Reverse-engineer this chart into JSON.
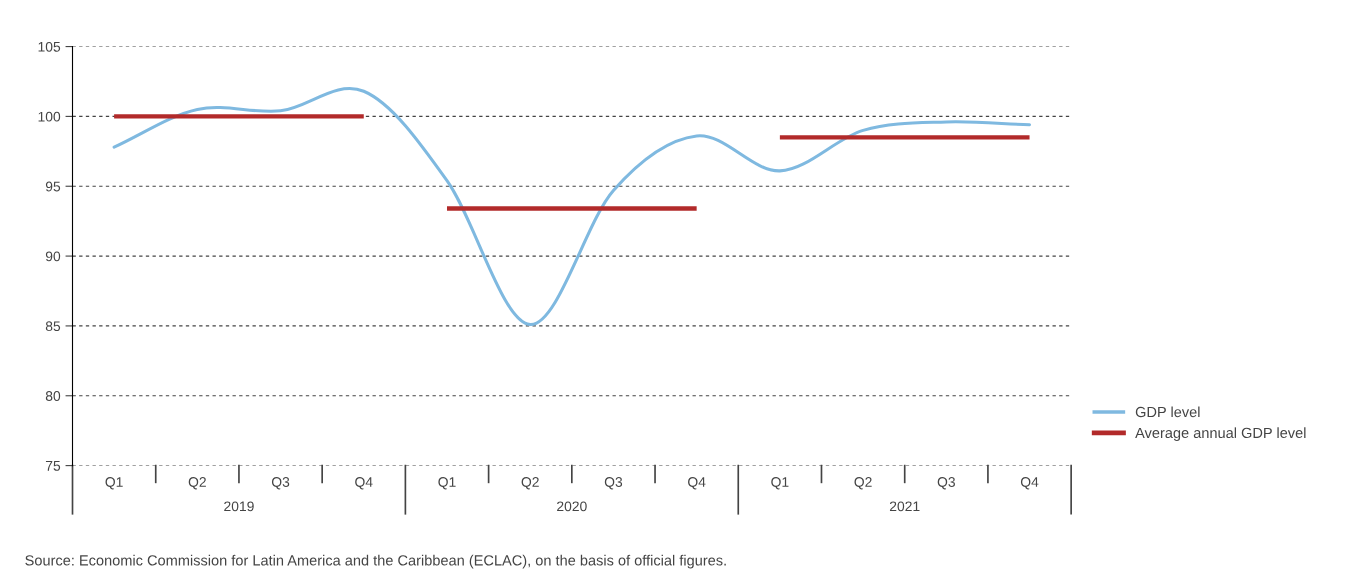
{
  "chart_data": {
    "type": "line",
    "categories": [
      "Q1",
      "Q2",
      "Q3",
      "Q4",
      "Q1",
      "Q2",
      "Q3",
      "Q4",
      "Q1",
      "Q2",
      "Q3",
      "Q4"
    ],
    "series": [
      {
        "name": "GDP level",
        "color": "#7fb9e0",
        "values": [
          97.8,
          100.5,
          100.4,
          101.8,
          95.4,
          85.1,
          94.7,
          98.6,
          96.1,
          99.0,
          99.6,
          99.4
        ]
      },
      {
        "name": "Average annual GDP level",
        "color": "#b22a2a",
        "type": "step",
        "values": [
          100.0,
          100.0,
          100.0,
          100.0,
          93.4,
          93.4,
          93.4,
          93.4,
          98.5,
          98.5,
          98.5,
          98.5
        ]
      }
    ],
    "ylim": [
      75,
      105
    ],
    "yticks": [
      75,
      80,
      85,
      90,
      95,
      100,
      105
    ],
    "grid": "y",
    "legend": "right",
    "annotations": [
      "2019",
      "2020",
      "2021",
      "Source: Economic Commission for Latin America and the Caribbean (ECLAC), on the basis of official figures."
    ]
  }
}
